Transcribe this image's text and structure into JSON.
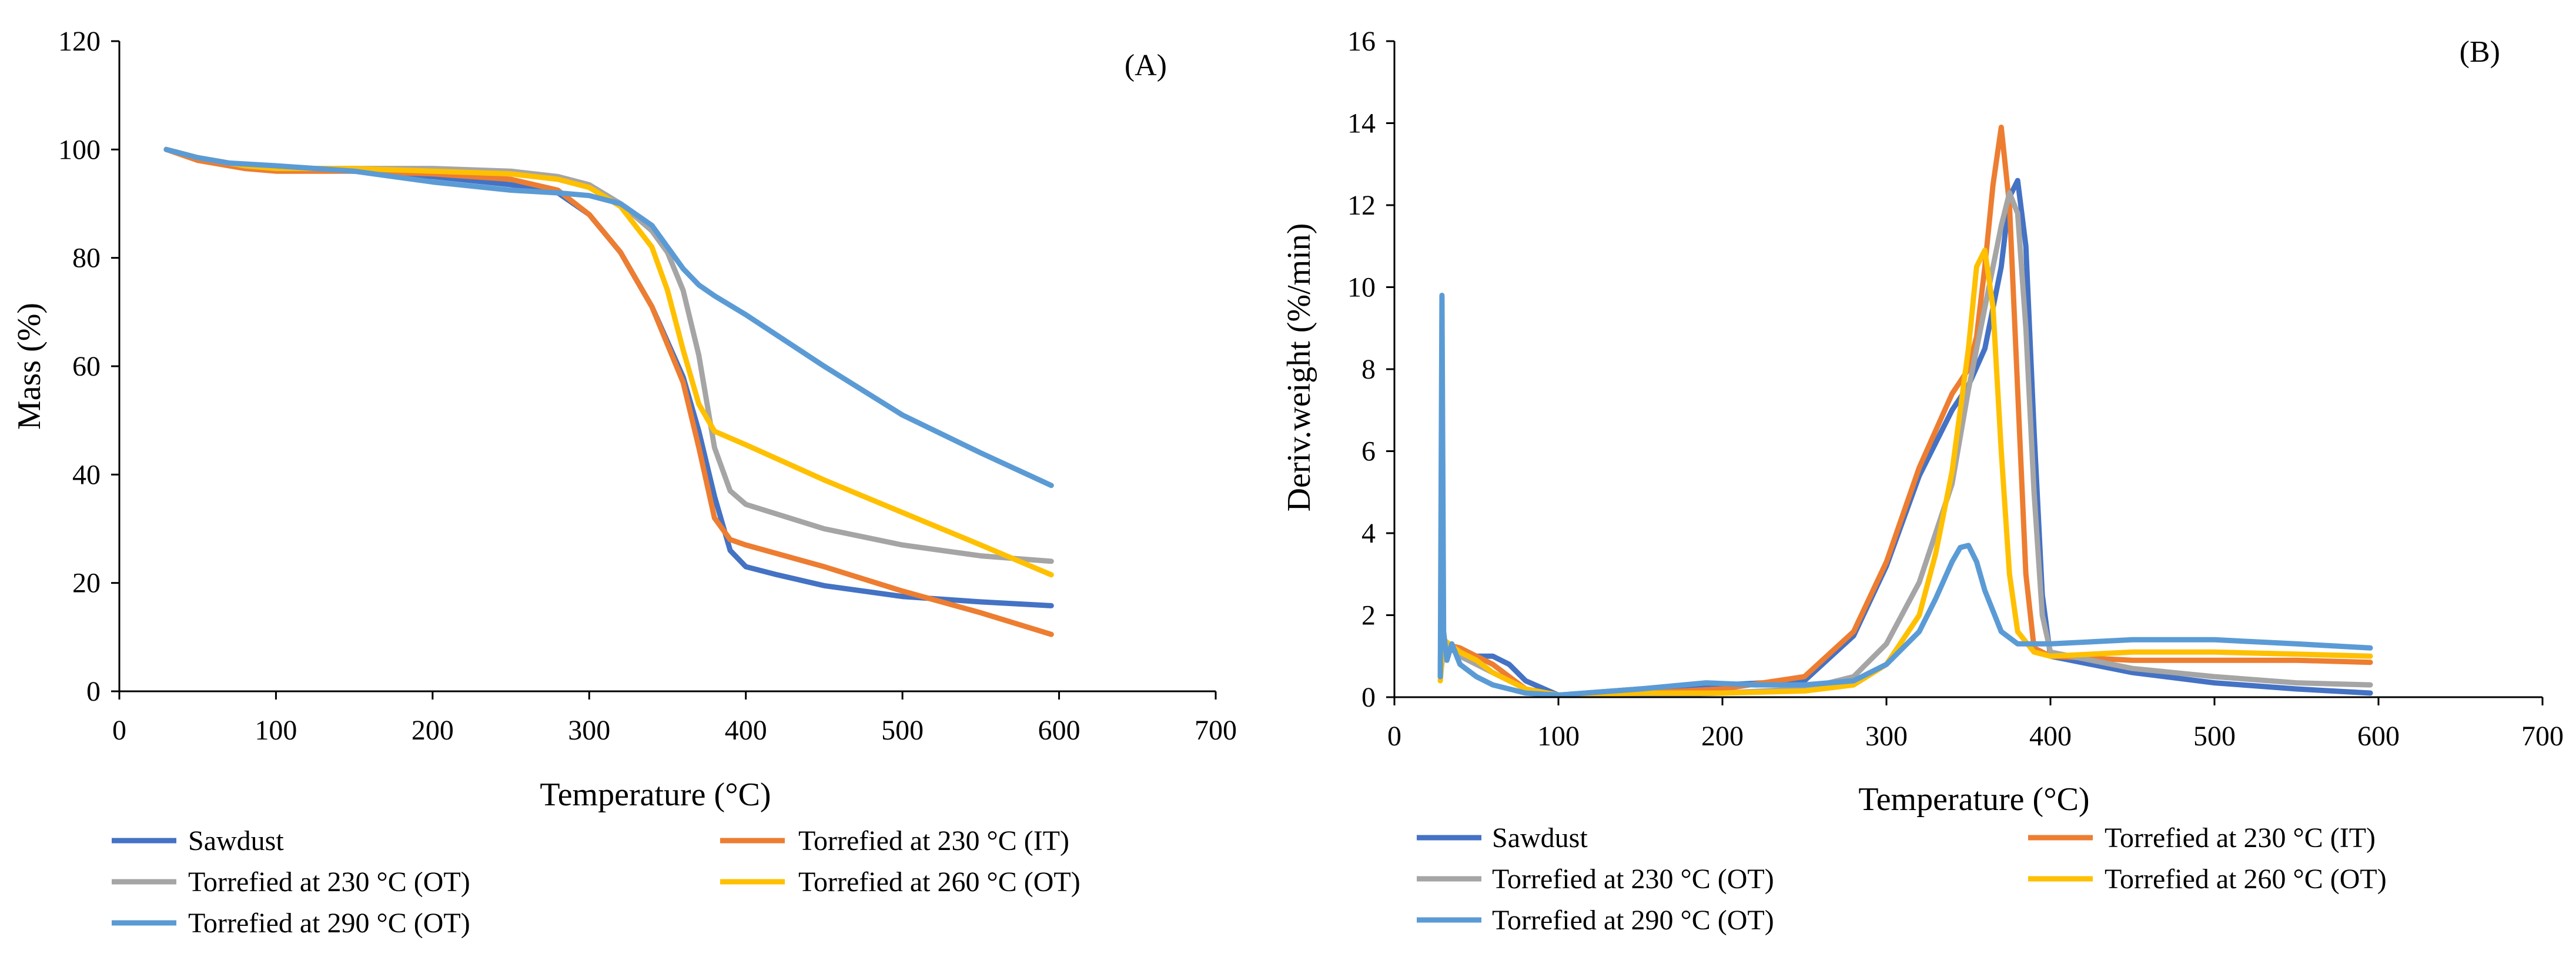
{
  "chart_data": [
    {
      "type": "line",
      "panel_label": "(A)",
      "xlabel": "Temperature (°C)",
      "ylabel": "Mass (%)",
      "xlim": [
        0,
        700
      ],
      "ylim": [
        0,
        120
      ],
      "xticks": [
        0,
        100,
        200,
        300,
        400,
        500,
        600,
        700
      ],
      "yticks": [
        0,
        20,
        40,
        60,
        80,
        100,
        120
      ],
      "grid": false,
      "legend_position": "bottom",
      "series": [
        {
          "name": "Sawdust",
          "color": "#4472C4",
          "x": [
            30,
            50,
            80,
            100,
            150,
            200,
            250,
            280,
            300,
            320,
            340,
            360,
            370,
            380,
            390,
            400,
            420,
            450,
            500,
            550,
            595
          ],
          "y": [
            100,
            98.5,
            97,
            96.5,
            96,
            95,
            93.5,
            92,
            88,
            81,
            71,
            58,
            48,
            36,
            26,
            23,
            21.5,
            19.5,
            17.5,
            16.5,
            15.8
          ]
        },
        {
          "name": "Torrefied  at 230 °C (IT)",
          "color": "#ED7D31",
          "x": [
            30,
            50,
            80,
            100,
            150,
            200,
            250,
            280,
            300,
            320,
            340,
            360,
            370,
            380,
            390,
            400,
            450,
            500,
            550,
            595
          ],
          "y": [
            100,
            98,
            96.5,
            96,
            96,
            95.5,
            94.5,
            92.5,
            88,
            81,
            71,
            57,
            45,
            32,
            28,
            27,
            23,
            18.5,
            14.5,
            10.5
          ]
        },
        {
          "name": "Torrefied  at 230 °C (OT)",
          "color": "#A5A5A5",
          "x": [
            30,
            50,
            80,
            100,
            150,
            200,
            250,
            280,
            300,
            320,
            340,
            350,
            360,
            370,
            380,
            390,
            400,
            450,
            500,
            550,
            595
          ],
          "y": [
            100,
            98.5,
            97,
            96.5,
            96.5,
            96.5,
            96,
            95,
            93.5,
            90,
            85,
            81,
            74,
            62,
            45,
            37,
            34.5,
            30,
            27,
            25,
            24
          ]
        },
        {
          "name": "Torrefied  at 260 °C (OT)",
          "color": "#FFC000",
          "x": [
            30,
            50,
            80,
            100,
            150,
            200,
            250,
            280,
            300,
            320,
            340,
            350,
            360,
            370,
            380,
            400,
            450,
            500,
            550,
            595
          ],
          "y": [
            100,
            98.5,
            97,
            96.5,
            96.5,
            96,
            95.5,
            94.5,
            93,
            89.5,
            82,
            74,
            63,
            53,
            48,
            45.5,
            39,
            33,
            27,
            21.5
          ]
        },
        {
          "name": "Torrefied  at 290 °C (OT)",
          "color": "#5B9BD5",
          "x": [
            30,
            50,
            70,
            100,
            150,
            200,
            250,
            280,
            300,
            320,
            340,
            350,
            360,
            370,
            380,
            400,
            450,
            500,
            550,
            595
          ],
          "y": [
            100,
            98.5,
            97.5,
            97,
            96,
            94,
            92.5,
            92,
            91.5,
            90,
            86,
            82,
            78,
            75,
            73,
            69.5,
            60,
            51,
            44,
            38
          ]
        }
      ]
    },
    {
      "type": "line",
      "panel_label": "(B)",
      "xlabel": "Temperature (°C)",
      "ylabel": "Deriv.weight (%/min)",
      "xlim": [
        0,
        700
      ],
      "ylim": [
        0,
        16
      ],
      "xticks": [
        0,
        100,
        200,
        300,
        400,
        500,
        600,
        700
      ],
      "yticks": [
        0,
        2,
        4,
        6,
        8,
        10,
        12,
        14,
        16
      ],
      "grid": false,
      "legend_position": "bottom",
      "series": [
        {
          "name": "Sawdust",
          "color": "#4472C4",
          "x": [
            28,
            30,
            40,
            50,
            60,
            70,
            80,
            100,
            150,
            200,
            250,
            280,
            300,
            320,
            340,
            350,
            360,
            370,
            375,
            380,
            385,
            390,
            395,
            400,
            450,
            500,
            550,
            595
          ],
          "y": [
            0.5,
            1.2,
            1.1,
            1.0,
            1.0,
            0.8,
            0.4,
            0.05,
            0.2,
            0.3,
            0.4,
            1.5,
            3.2,
            5.4,
            7.0,
            7.6,
            8.5,
            10.5,
            12.2,
            12.6,
            11.0,
            6.5,
            2.5,
            1.0,
            0.6,
            0.35,
            0.2,
            0.1
          ]
        },
        {
          "name": "Torrefied  at 230 °C (IT)",
          "color": "#ED7D31",
          "x": [
            28,
            30,
            40,
            50,
            60,
            70,
            80,
            100,
            150,
            200,
            250,
            280,
            300,
            320,
            340,
            350,
            355,
            360,
            365,
            370,
            375,
            380,
            385,
            390,
            400,
            450,
            500,
            550,
            595
          ],
          "y": [
            0.6,
            1.3,
            1.2,
            1.0,
            0.8,
            0.5,
            0.2,
            0.05,
            0.1,
            0.2,
            0.5,
            1.6,
            3.3,
            5.6,
            7.4,
            8.0,
            8.8,
            10.5,
            12.5,
            13.9,
            12.0,
            7.5,
            3.0,
            1.2,
            1.0,
            0.9,
            0.9,
            0.9,
            0.85
          ]
        },
        {
          "name": "Torrefied  at 230 °C (OT)",
          "color": "#A5A5A5",
          "x": [
            28,
            29,
            30,
            40,
            50,
            60,
            80,
            100,
            150,
            200,
            250,
            280,
            300,
            320,
            340,
            350,
            360,
            370,
            375,
            380,
            385,
            390,
            395,
            400,
            450,
            500,
            550,
            595
          ],
          "y": [
            0.5,
            5.0,
            1.4,
            1.0,
            0.8,
            0.6,
            0.2,
            0.05,
            0.05,
            0.1,
            0.2,
            0.5,
            1.3,
            2.8,
            5.2,
            7.5,
            9.5,
            11.5,
            12.3,
            11.8,
            9.0,
            5.0,
            2.0,
            1.1,
            0.7,
            0.5,
            0.35,
            0.3
          ]
        },
        {
          "name": "Torrefied  at 260 °C (OT)",
          "color": "#FFC000",
          "x": [
            28,
            30,
            40,
            50,
            60,
            80,
            100,
            150,
            200,
            250,
            280,
            300,
            320,
            330,
            340,
            350,
            355,
            360,
            365,
            370,
            375,
            380,
            390,
            400,
            450,
            500,
            550,
            595
          ],
          "y": [
            0.4,
            1.4,
            1.1,
            0.9,
            0.6,
            0.2,
            0.05,
            0.1,
            0.1,
            0.15,
            0.3,
            0.8,
            2.0,
            3.5,
            5.5,
            8.5,
            10.5,
            10.9,
            9.5,
            6.0,
            3.0,
            1.6,
            1.1,
            1.0,
            1.1,
            1.1,
            1.05,
            1.0
          ]
        },
        {
          "name": "Torrefied  at 290 °C (OT)",
          "color": "#5B9BD5",
          "x": [
            28,
            29,
            30,
            32,
            35,
            40,
            50,
            60,
            80,
            100,
            150,
            190,
            220,
            250,
            280,
            300,
            320,
            330,
            340,
            345,
            350,
            355,
            360,
            370,
            380,
            400,
            450,
            500,
            550,
            595
          ],
          "y": [
            0.5,
            9.8,
            1.6,
            0.9,
            1.3,
            0.8,
            0.5,
            0.3,
            0.1,
            0.05,
            0.2,
            0.35,
            0.3,
            0.3,
            0.4,
            0.8,
            1.6,
            2.4,
            3.3,
            3.65,
            3.7,
            3.3,
            2.6,
            1.6,
            1.3,
            1.3,
            1.4,
            1.4,
            1.3,
            1.2
          ]
        }
      ]
    }
  ]
}
